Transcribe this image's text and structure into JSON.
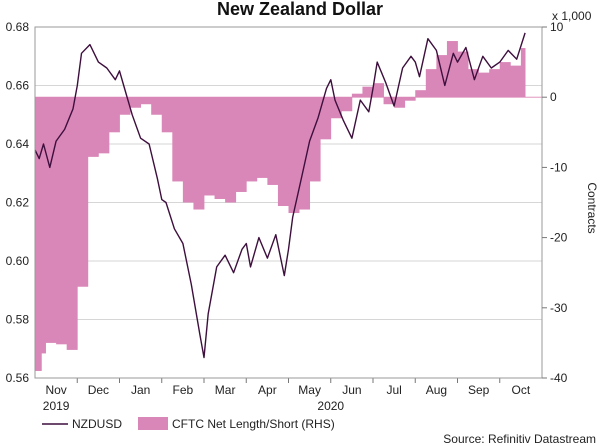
{
  "chart_data": {
    "type": "line+area",
    "title": "New Zealand Dollar",
    "x_months": [
      "Nov",
      "Dec",
      "Jan",
      "Feb",
      "Mar",
      "Apr",
      "May",
      "Jun",
      "Jul",
      "Aug",
      "Sep",
      "Oct"
    ],
    "x_years": [
      "2019",
      "2020"
    ],
    "left_axis": {
      "ylim": [
        0.56,
        0.68
      ],
      "ticks": [
        "0.56",
        "0.58",
        "0.60",
        "0.62",
        "0.64",
        "0.66",
        "0.68"
      ]
    },
    "right_axis": {
      "ylim": [
        -40,
        10
      ],
      "ticks": [
        "10",
        "0",
        "-10",
        "-20",
        "-30",
        "-40"
      ],
      "multiplier": "x 1,000",
      "label": "Contracts"
    },
    "legend": [
      "NZDUSD",
      "CFTC Net Length/Short (RHS)"
    ],
    "source": "Source: Refinitiv Datastream",
    "colors": {
      "line": "#3d0f3d",
      "area": "#d987b8",
      "grid": "#d6d6d6"
    },
    "series": [
      {
        "name": "NZDUSD",
        "axis": "left",
        "x": [
          0,
          0.1,
          0.2,
          0.35,
          0.5,
          0.7,
          0.9,
          1.0,
          1.1,
          1.3,
          1.5,
          1.7,
          1.9,
          2.0,
          2.1,
          2.3,
          2.5,
          2.7,
          2.9,
          3.0,
          3.1,
          3.3,
          3.5,
          3.7,
          3.9,
          4.0,
          4.1,
          4.3,
          4.5,
          4.7,
          4.9,
          5.0,
          5.1,
          5.3,
          5.5,
          5.7,
          5.9,
          6.0,
          6.1,
          6.3,
          6.5,
          6.7,
          6.9,
          7.0,
          7.1,
          7.3,
          7.5,
          7.7,
          7.9,
          8.0,
          8.1,
          8.3,
          8.5,
          8.7,
          8.9,
          9.0,
          9.1,
          9.3,
          9.5,
          9.7,
          9.9,
          10.0,
          10.2,
          10.4,
          10.6,
          10.8,
          11.0,
          11.2,
          11.4,
          11.6
        ],
        "values": [
          0.638,
          0.635,
          0.64,
          0.632,
          0.641,
          0.645,
          0.652,
          0.66,
          0.671,
          0.674,
          0.668,
          0.666,
          0.662,
          0.665,
          0.66,
          0.65,
          0.642,
          0.64,
          0.628,
          0.621,
          0.62,
          0.611,
          0.606,
          0.592,
          0.575,
          0.567,
          0.582,
          0.598,
          0.602,
          0.596,
          0.604,
          0.606,
          0.598,
          0.608,
          0.601,
          0.609,
          0.595,
          0.604,
          0.615,
          0.628,
          0.641,
          0.649,
          0.659,
          0.662,
          0.655,
          0.648,
          0.642,
          0.655,
          0.651,
          0.659,
          0.668,
          0.661,
          0.653,
          0.666,
          0.67,
          0.668,
          0.663,
          0.676,
          0.672,
          0.66,
          0.671,
          0.668,
          0.673,
          0.662,
          0.67,
          0.666,
          0.668,
          0.672,
          0.669,
          0.678
        ]
      },
      {
        "name": "CFTC Net Length/Short (RHS)",
        "axis": "right",
        "x": [
          0,
          0.15,
          0.25,
          0.5,
          0.75,
          1.0,
          1.25,
          1.5,
          1.75,
          2.0,
          2.25,
          2.5,
          2.75,
          3.0,
          3.25,
          3.5,
          3.75,
          4.0,
          4.25,
          4.5,
          4.75,
          5.0,
          5.25,
          5.5,
          5.75,
          6.0,
          6.25,
          6.5,
          6.75,
          7.0,
          7.25,
          7.5,
          7.75,
          8.0,
          8.25,
          8.5,
          8.75,
          9.0,
          9.25,
          9.5,
          9.75,
          10.0,
          10.25,
          10.5,
          10.75,
          11.0,
          11.25,
          11.5
        ],
        "values": [
          -39.0,
          -36.5,
          -35.0,
          -35.2,
          -36.0,
          -27.0,
          -8.5,
          -8.0,
          -5.0,
          -2.5,
          -1.5,
          -1.0,
          -2.5,
          -5.0,
          -12.0,
          -15.0,
          -16.0,
          -14.0,
          -14.5,
          -15.0,
          -13.5,
          -12.0,
          -11.5,
          -12.5,
          -15.5,
          -16.5,
          -16.0,
          -12.0,
          -6.0,
          -3.0,
          -2.0,
          0.5,
          1.5,
          2.0,
          -1.0,
          -1.5,
          -0.5,
          1.0,
          4.0,
          6.0,
          8.0,
          6.5,
          4.0,
          3.5,
          4.0,
          5.0,
          4.5,
          7.0
        ]
      }
    ]
  }
}
